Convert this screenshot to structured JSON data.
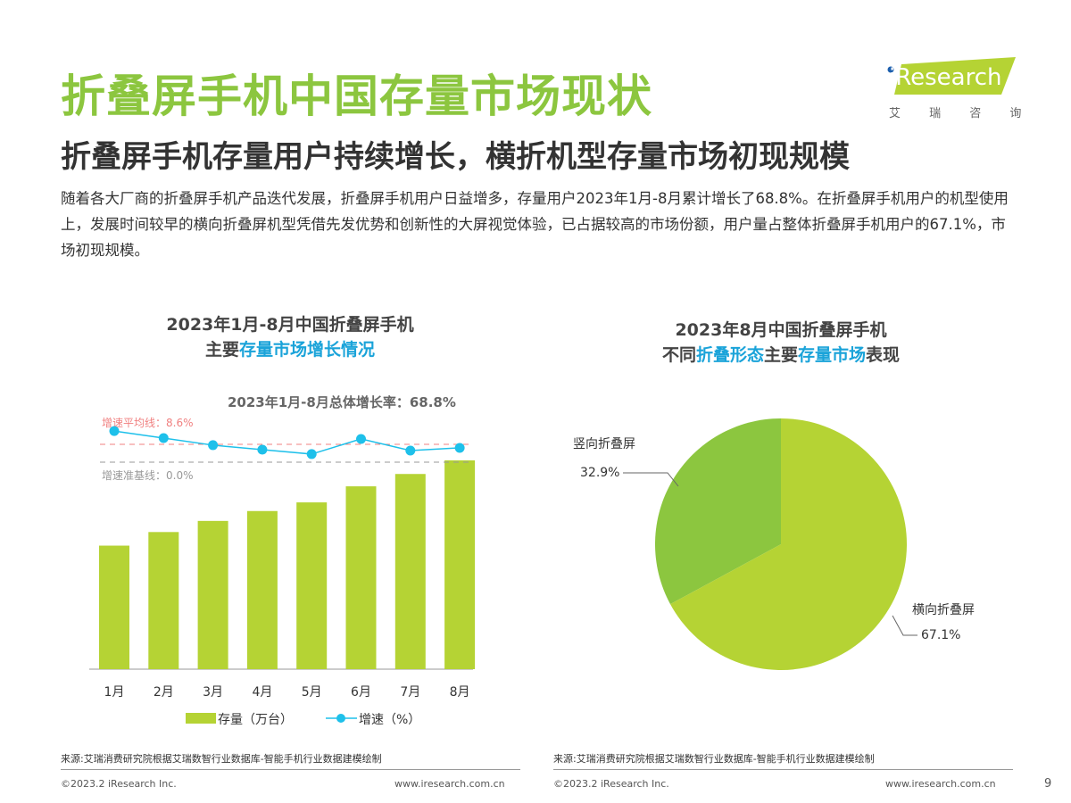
{
  "header": {
    "title": "折叠屏手机中国存量市场现状",
    "subtitle": "折叠屏手机存量用户持续增长，横折机型存量市场初现规模",
    "description": "随着各大厂商的折叠屏手机产品迭代发展，折叠屏手机用户日益增多，存量用户2023年1月-8月累计增长了68.8%。在折叠屏手机用户的机型使用上，发展时间较早的横向折叠屏机型凭借先发优势和创新性的大屏视觉体验，已占据较高的市场份额，用户量占整体折叠屏手机用户的67.1%，市场初现规模。"
  },
  "logo": {
    "brand": "iResearch",
    "cn": "艾 瑞 咨 询"
  },
  "chart_data": [
    {
      "type": "bar+line",
      "title_line1": "2023年1月-8月中国折叠屏手机",
      "title_line2_a": "主要",
      "title_line2_hl": "存量市场增长情况",
      "annotation": "2023年1月-8月总体增长率：68.8%",
      "categories": [
        "1月",
        "2月",
        "3月",
        "4月",
        "5月",
        "6月",
        "7月",
        "8月"
      ],
      "series": [
        {
          "name": "存量（万台）",
          "type": "bar",
          "color": "#b5d334",
          "values": [
            100,
            111,
            120,
            128,
            135,
            148,
            158,
            169
          ]
        },
        {
          "name": "增速（%）",
          "type": "line",
          "color": "#1ec0ea",
          "values": [
            15.0,
            11.6,
            8.2,
            6.0,
            3.9,
            11.2,
            5.6,
            6.9
          ]
        }
      ],
      "reference_lines": [
        {
          "label": "增速平均线：8.6%",
          "value": 8.6,
          "color": "#f08080"
        },
        {
          "label": "增速准基线：0.0%",
          "value": 0,
          "color": "#999999"
        }
      ],
      "legend_position": "bottom",
      "grid": false
    },
    {
      "type": "pie",
      "title_line1": "2023年8月中国折叠屏手机",
      "title_line2_parts": [
        "不同",
        "折叠形态",
        "主要",
        "存量市场",
        "表现"
      ],
      "slices": [
        {
          "label": "竖向折叠屏",
          "value": 32.9,
          "display": "32.9%",
          "color": "#8cc63f"
        },
        {
          "label": "横向折叠屏",
          "value": 67.1,
          "display": "67.1%",
          "color": "#b5d334"
        }
      ]
    }
  ],
  "footer": {
    "source": "来源:艾瑞消费研究院根据艾瑞数智行业数据库-智能手机行业数据建模绘制",
    "copyright": "©2023.2 iResearch Inc.",
    "url": "www.iresearch.com.cn",
    "page": "9"
  }
}
